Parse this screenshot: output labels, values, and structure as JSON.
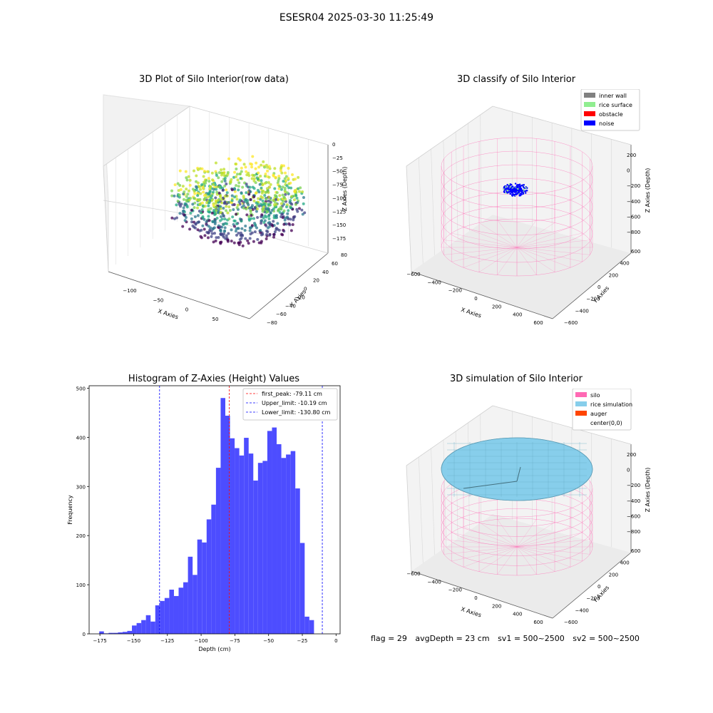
{
  "suptitle": "ESESR04 2025-03-30 11:25:49",
  "panel_titles": {
    "raw": "3D Plot of Silo Interior(row data)",
    "classify": "3D classify of Silo Interior",
    "histogram": "Histogram of Z-Axies (Height) Values",
    "simulation": "3D simulation of Silo Interior"
  },
  "footer": {
    "flag": "flag = 29",
    "avg_depth": "avgDepth = 23 cm",
    "sv1": "sv1 = 500~2500",
    "sv2": "sv2 = 500~2500"
  },
  "chart_data": [
    {
      "type": "scatter",
      "title": "3D Plot of Silo Interior(row data)",
      "xlabel": "X Axies",
      "ylabel": "Y Axies",
      "zlabel": "Z Axies (Depth)",
      "xticks": [
        "−100",
        "−50",
        "0",
        "50"
      ],
      "yticks": [
        "−80",
        "−60",
        "−40",
        "−20",
        "0",
        "20",
        "40",
        "60",
        "80"
      ],
      "zticks": [
        "0",
        "−25",
        "−50",
        "−75",
        "−100",
        "−125",
        "−150",
        "−175"
      ],
      "colormap": "viridis"
    },
    {
      "type": "scatter",
      "title": "3D classify of Silo Interior",
      "xlabel": "X Axies",
      "ylabel": "Y Axies",
      "zlabel": "Z Axies (Depth)",
      "xticks": [
        "−600",
        "−400",
        "−200",
        "0",
        "200",
        "400",
        "600"
      ],
      "yticks": [
        "−600",
        "−400",
        "−200",
        "0",
        "200",
        "400",
        "600"
      ],
      "zticks": [
        "200",
        "0",
        "−200",
        "−400",
        "−600",
        "−800"
      ],
      "legend": [
        {
          "label": "inner wall",
          "color": "#808080"
        },
        {
          "label": "rice surface",
          "color": "#90ee90"
        },
        {
          "label": "obstacle",
          "color": "#ff0000"
        },
        {
          "label": "noise",
          "color": "#0000ff"
        }
      ],
      "legend_position": "top-right"
    },
    {
      "type": "bar",
      "title": "Histogram of Z-Axies (Height) Values",
      "xlabel": "Depth (cm)",
      "ylabel": "Frequency",
      "xlim": [
        -183,
        3
      ],
      "ylim": [
        0,
        505
      ],
      "xticks": [
        -175,
        -150,
        -125,
        -100,
        -75,
        -50,
        -25,
        0
      ],
      "yticks": [
        0,
        100,
        200,
        300,
        400,
        500
      ],
      "bin_start": -175.5,
      "bin_width": 3.46,
      "values": [
        5,
        1,
        2,
        2,
        3,
        4,
        6,
        17,
        22,
        28,
        38,
        25,
        58,
        67,
        73,
        90,
        77,
        94,
        105,
        157,
        120,
        192,
        186,
        233,
        263,
        338,
        480,
        444,
        398,
        378,
        363,
        399,
        367,
        312,
        348,
        352,
        413,
        420,
        386,
        358,
        365,
        372,
        296,
        185,
        35,
        28
      ],
      "bar_color": "#4d4dff",
      "reference_lines": [
        {
          "label": "first_peak: -79.11 cm",
          "x": -79.11,
          "color": "#ff0000"
        },
        {
          "label": "Upper_limit: -10.19 cm",
          "x": -10.19,
          "color": "#0000ff"
        },
        {
          "label": "Lower_limit: -130.80 cm",
          "x": -130.8,
          "color": "#0000ff"
        }
      ],
      "legend_position": "top-right",
      "grid": false
    },
    {
      "type": "area",
      "title": "3D simulation of Silo Interior",
      "xlabel": "X Axies",
      "ylabel": "Y Axies",
      "zlabel": "Z Axies (Depth)",
      "xticks": [
        "−600",
        "−400",
        "−200",
        "0",
        "200",
        "400",
        "600"
      ],
      "yticks": [
        "−600",
        "−400",
        "−200",
        "0",
        "200",
        "400",
        "600"
      ],
      "zticks": [
        "200",
        "0",
        "−200",
        "−400",
        "−600",
        "−800"
      ],
      "legend": [
        {
          "label": "silo",
          "color": "#ff69b4"
        },
        {
          "label": "rice simulation",
          "color": "#87ceeb"
        },
        {
          "label": "auger",
          "color": "#ff4500"
        },
        {
          "label": "center(0,0)",
          "color": ""
        }
      ],
      "legend_position": "top-right"
    }
  ]
}
